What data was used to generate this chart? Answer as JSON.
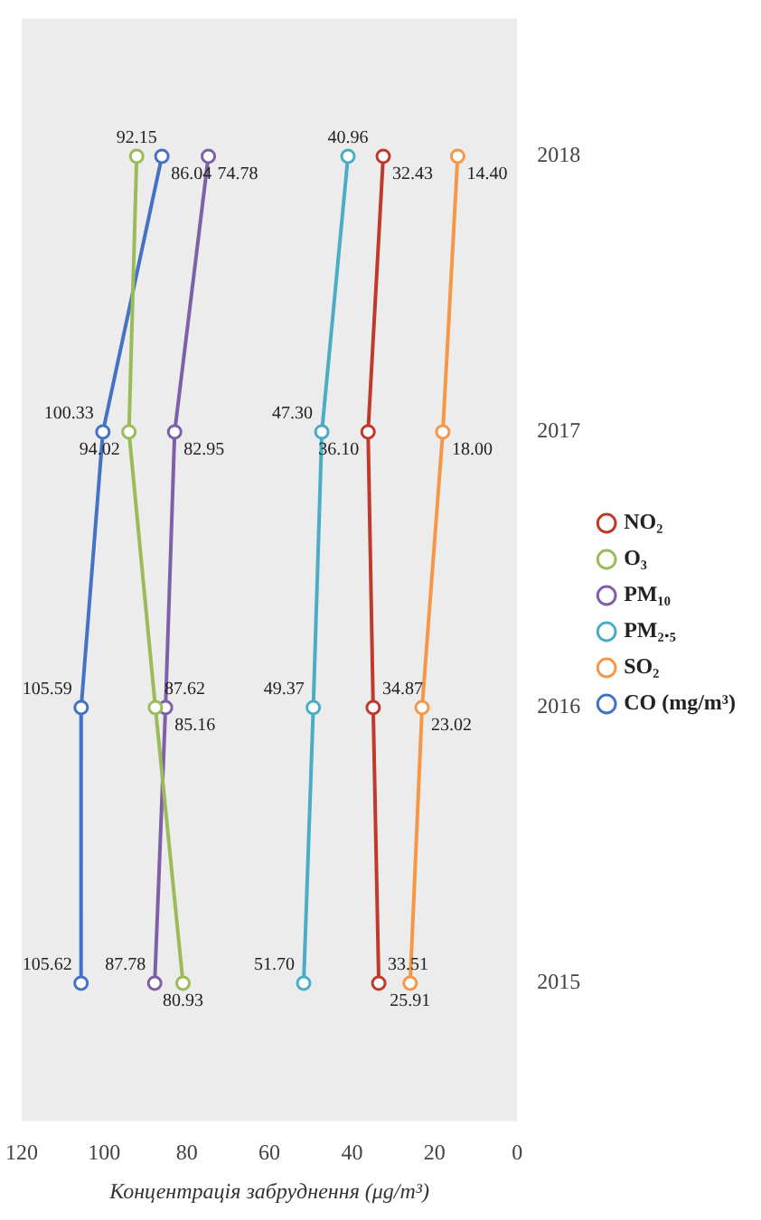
{
  "chart_data": {
    "type": "line",
    "xlabel": "Концентрація забруднення (μg/m³)",
    "categories": [
      "2018",
      "2017",
      "2016",
      "2015"
    ],
    "series": [
      {
        "name": "NO₂",
        "color": "#c0392b",
        "values": [
          32.43,
          36.1,
          34.87,
          33.51
        ],
        "value_labels": [
          "32.43",
          "36.10",
          "34.87",
          "33.51"
        ]
      },
      {
        "name": "O₃",
        "color": "#9bbb59",
        "values": [
          92.15,
          94.02,
          87.62,
          80.93
        ],
        "value_labels": [
          "92.15",
          "94.02",
          "87.62",
          "80.93"
        ]
      },
      {
        "name": "PM₁₀",
        "color": "#7f5fa8",
        "values": [
          74.78,
          82.95,
          85.16,
          87.78
        ],
        "value_labels": [
          "74.78",
          "82.95",
          "85.16",
          "87.78"
        ]
      },
      {
        "name": "PM₂.₅",
        "color": "#4bacc6",
        "values": [
          40.96,
          47.3,
          49.37,
          51.7
        ],
        "value_labels": [
          "40.96",
          "47.30",
          "49.37",
          "51.70"
        ]
      },
      {
        "name": "SO₂",
        "color": "#f79646",
        "values": [
          14.4,
          18.0,
          23.02,
          25.91
        ],
        "value_labels": [
          "14.40",
          "18.00",
          "23.02",
          "25.91"
        ]
      },
      {
        "name": "CO (mg/m³)",
        "color": "#4472c4",
        "values": [
          86.04,
          100.33,
          105.59,
          105.62
        ],
        "value_labels": [
          "86.04",
          "100.33",
          "105.59",
          "105.62"
        ]
      }
    ],
    "xlim": [
      120,
      0
    ],
    "xticks": [
      120,
      100,
      80,
      60,
      40,
      20,
      0
    ],
    "grid": false,
    "legend": "right",
    "orientation": "horizontal",
    "marker": "circle",
    "line_style": "solid"
  }
}
